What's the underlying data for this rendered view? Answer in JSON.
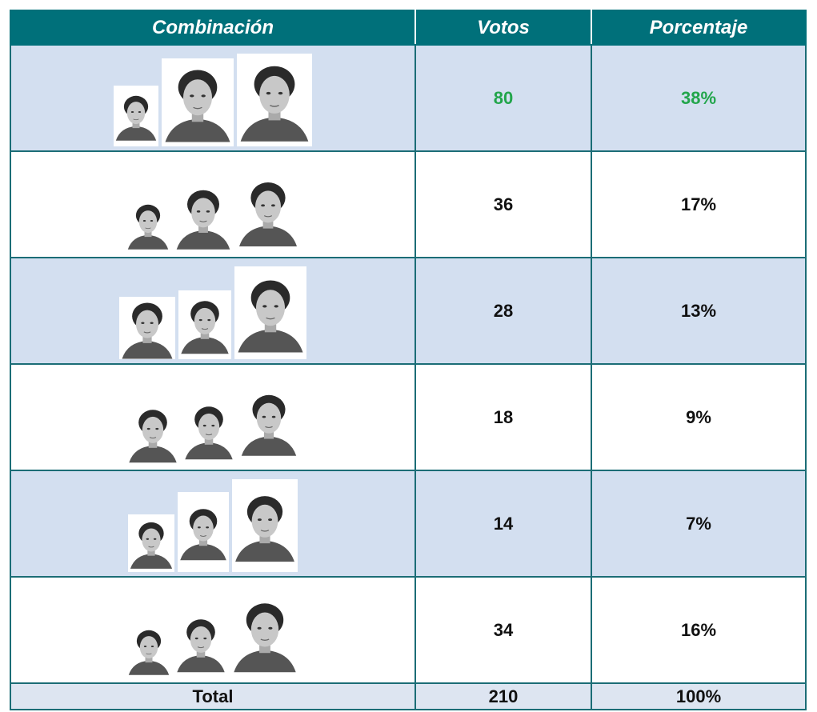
{
  "table": {
    "header": [
      "Combinación",
      "Votos",
      "Porcentaje"
    ],
    "rows": [
      {
        "votes": 80,
        "percent": "38%"
      },
      {
        "votes": 36,
        "percent": "17%"
      },
      {
        "votes": 28,
        "percent": "13%"
      },
      {
        "votes": 18,
        "percent": "9%"
      },
      {
        "votes": 14,
        "percent": "7%"
      },
      {
        "votes": 34,
        "percent": "16%"
      }
    ],
    "total": {
      "label": "Total",
      "votes": 210,
      "percent": "100%"
    }
  }
}
